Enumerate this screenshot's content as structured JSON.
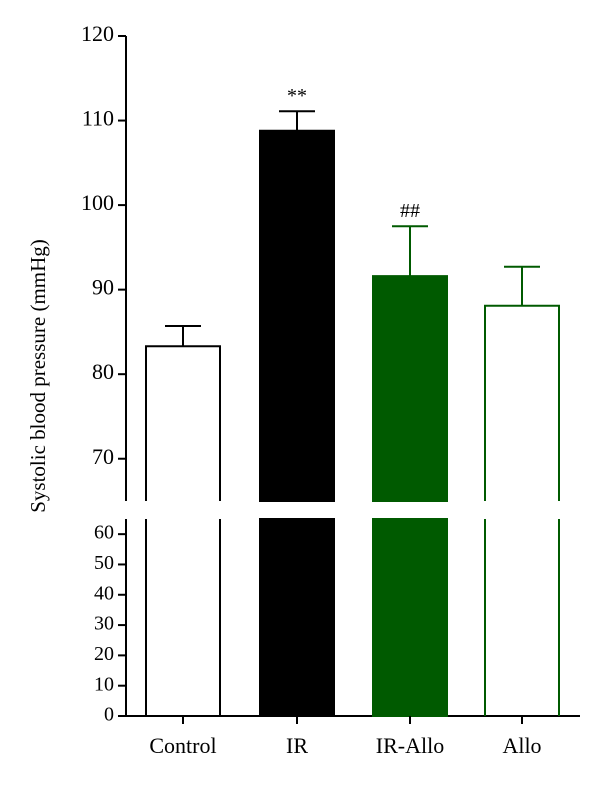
{
  "chart_data": {
    "type": "bar",
    "y_label": "Systolic blood pressure (mmHg)",
    "categories": [
      "Control",
      "IR",
      "IR-Allo",
      "Allo"
    ],
    "values": [
      83.3,
      108.8,
      91.6,
      88.1
    ],
    "errors": [
      2.4,
      2.3,
      5.9,
      4.6
    ],
    "annotations": [
      null,
      "**",
      "##",
      null
    ],
    "colors": [
      "#ffffff",
      "#000000",
      "#005a00",
      "#ffffff"
    ],
    "edge_colors": [
      "#000000",
      "#000000",
      "#005a00",
      "#005a00"
    ],
    "axis_segments": [
      {
        "ylim": [
          0,
          65
        ],
        "yticks": [
          0,
          10,
          20,
          30,
          40,
          50,
          60
        ]
      },
      {
        "ylim": [
          65,
          120
        ],
        "yticks": [
          70,
          80,
          90,
          100,
          110,
          120
        ]
      }
    ]
  }
}
